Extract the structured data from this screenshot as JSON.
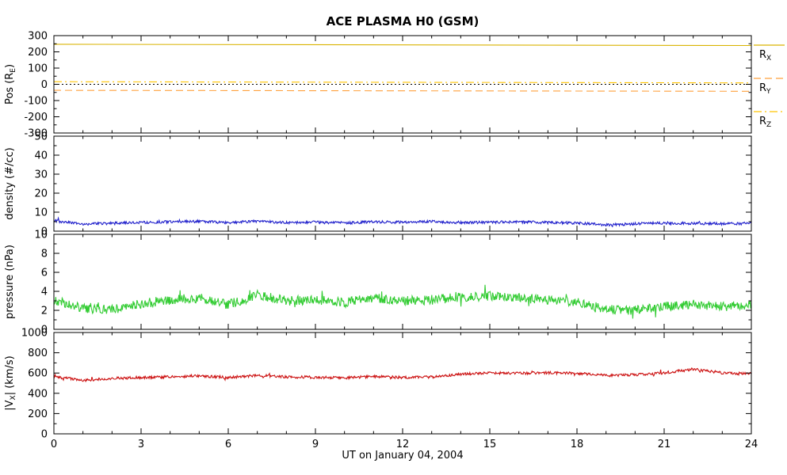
{
  "chart_data": {
    "type": "line",
    "title": "ACE PLASMA H0 (GSM)",
    "xlabel": "UT on January 04, 2004",
    "x_range": [
      0,
      24
    ],
    "x_ticks": [
      0,
      3,
      6,
      9,
      12,
      15,
      18,
      21,
      24
    ],
    "x_minor_step": 1,
    "legend": [
      {
        "name": "R_X",
        "parts": [
          {
            "t": "R"
          },
          {
            "t": "X",
            "sub": true
          }
        ],
        "style": "solid",
        "color": "#D9B300"
      },
      {
        "name": "R_Y",
        "parts": [
          {
            "t": "R"
          },
          {
            "t": "Y",
            "sub": true
          }
        ],
        "style": "dashed",
        "color": "#FFA03C"
      },
      {
        "name": "R_Z",
        "parts": [
          {
            "t": "R"
          },
          {
            "t": "Z",
            "sub": true
          }
        ],
        "style": "dashdot",
        "color": "#FFC400"
      }
    ],
    "panels": [
      {
        "ylabel_parts": [
          {
            "t": "Pos (R"
          },
          {
            "t": "E",
            "sub": true
          },
          {
            "t": ")"
          }
        ],
        "ylim": [
          -300,
          300
        ],
        "yticks": [
          -300,
          -200,
          -100,
          0,
          100,
          200,
          300
        ],
        "zero_line": true,
        "series": [
          {
            "name": "R_X",
            "style": "solid",
            "color": "#D9B300",
            "anchors": [
              247,
              239
            ],
            "noise": 0
          },
          {
            "name": "R_Y",
            "style": "dashed",
            "color": "#FFA03C",
            "anchors": [
              -37,
              -43
            ],
            "noise": 0
          },
          {
            "name": "R_Z",
            "style": "dashdot",
            "color": "#FFC400",
            "anchors": [
              16,
              9
            ],
            "noise": 0
          }
        ]
      },
      {
        "ylabel_parts": [
          {
            "t": "density (#/cc)"
          }
        ],
        "ylim": [
          0,
          50
        ],
        "yticks": [
          0,
          10,
          20,
          30,
          40,
          50
        ],
        "zero_line": false,
        "series": [
          {
            "name": "density",
            "style": "solid",
            "color": "#2222CC",
            "anchors": [
              5.4,
              3.7,
              4.1,
              4.6,
              4.9,
              5.1,
              4.5,
              5.3,
              4.5,
              4.7,
              4.3,
              4.9,
              4.7,
              5.1,
              4.5,
              4.7,
              4.9,
              4.5,
              4.3,
              3.3,
              3.9,
              4.3,
              4.1,
              3.9,
              4.1
            ],
            "noise": 0.7
          }
        ]
      },
      {
        "ylabel_parts": [
          {
            "t": "pressure (nPa)"
          }
        ],
        "ylim": [
          0,
          10
        ],
        "yticks": [
          0,
          2,
          4,
          6,
          8,
          10
        ],
        "zero_line": false,
        "series": [
          {
            "name": "pressure",
            "style": "solid",
            "color": "#33CC33",
            "anchors": [
              3.1,
              2.2,
              2.1,
              2.7,
              3.1,
              3.3,
              2.6,
              3.6,
              3.0,
              3.1,
              2.8,
              3.3,
              3.0,
              3.1,
              3.4,
              3.5,
              3.3,
              3.1,
              2.9,
              2.1,
              2.0,
              2.4,
              2.6,
              2.4,
              2.5
            ],
            "noise": 0.5
          }
        ]
      },
      {
        "ylabel_parts": [
          {
            "t": "|V"
          },
          {
            "t": "X",
            "sub": true
          },
          {
            "t": "| (km/s)"
          }
        ],
        "ylim": [
          0,
          1000
        ],
        "yticks": [
          0,
          200,
          400,
          600,
          800,
          1000
        ],
        "zero_line": false,
        "series": [
          {
            "name": "Vx",
            "style": "solid",
            "color": "#CC1111",
            "anchors": [
              565,
              528,
              548,
              556,
              562,
              572,
              556,
              577,
              562,
              557,
              552,
              566,
              556,
              561,
              588,
              602,
              597,
              603,
              597,
              576,
              582,
              602,
              638,
              602,
              592
            ],
            "noise": 13
          }
        ]
      }
    ]
  }
}
